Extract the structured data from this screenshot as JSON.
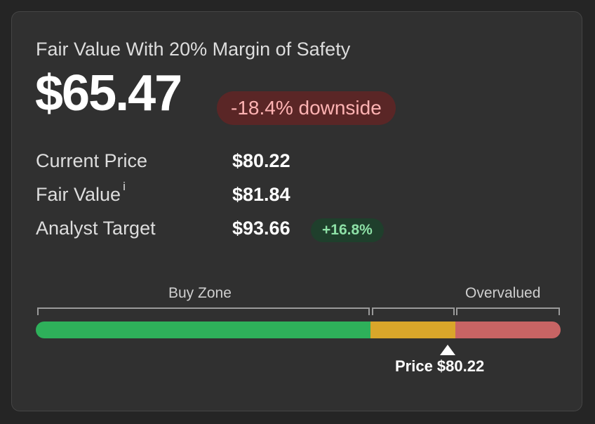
{
  "card": {
    "heading": "Fair Value With 20% Margin of Safety",
    "value": "$65.47",
    "downside_badge": "-18.4% downside",
    "downside_color": "#5a2626"
  },
  "rows": [
    {
      "label": "Current Price",
      "value": "$80.22"
    },
    {
      "label": "Fair Value",
      "value": "$81.84",
      "info_icon": "i"
    },
    {
      "label": "Analyst Target",
      "value": "$93.66",
      "badge": "+16.8%"
    }
  ],
  "valuation_bar": {
    "buy_zone_label": "Buy Zone",
    "overvalued_label": "Overvalued",
    "segments": [
      {
        "name": "buy-zone",
        "color": "#2eb05a",
        "fraction": 0.638
      },
      {
        "name": "fair-zone",
        "color": "#d9a62a",
        "fraction": 0.161
      },
      {
        "name": "overvalued-zone",
        "color": "#c86464",
        "fraction": 0.201
      }
    ],
    "price_marker_label": "Price $80.22"
  }
}
